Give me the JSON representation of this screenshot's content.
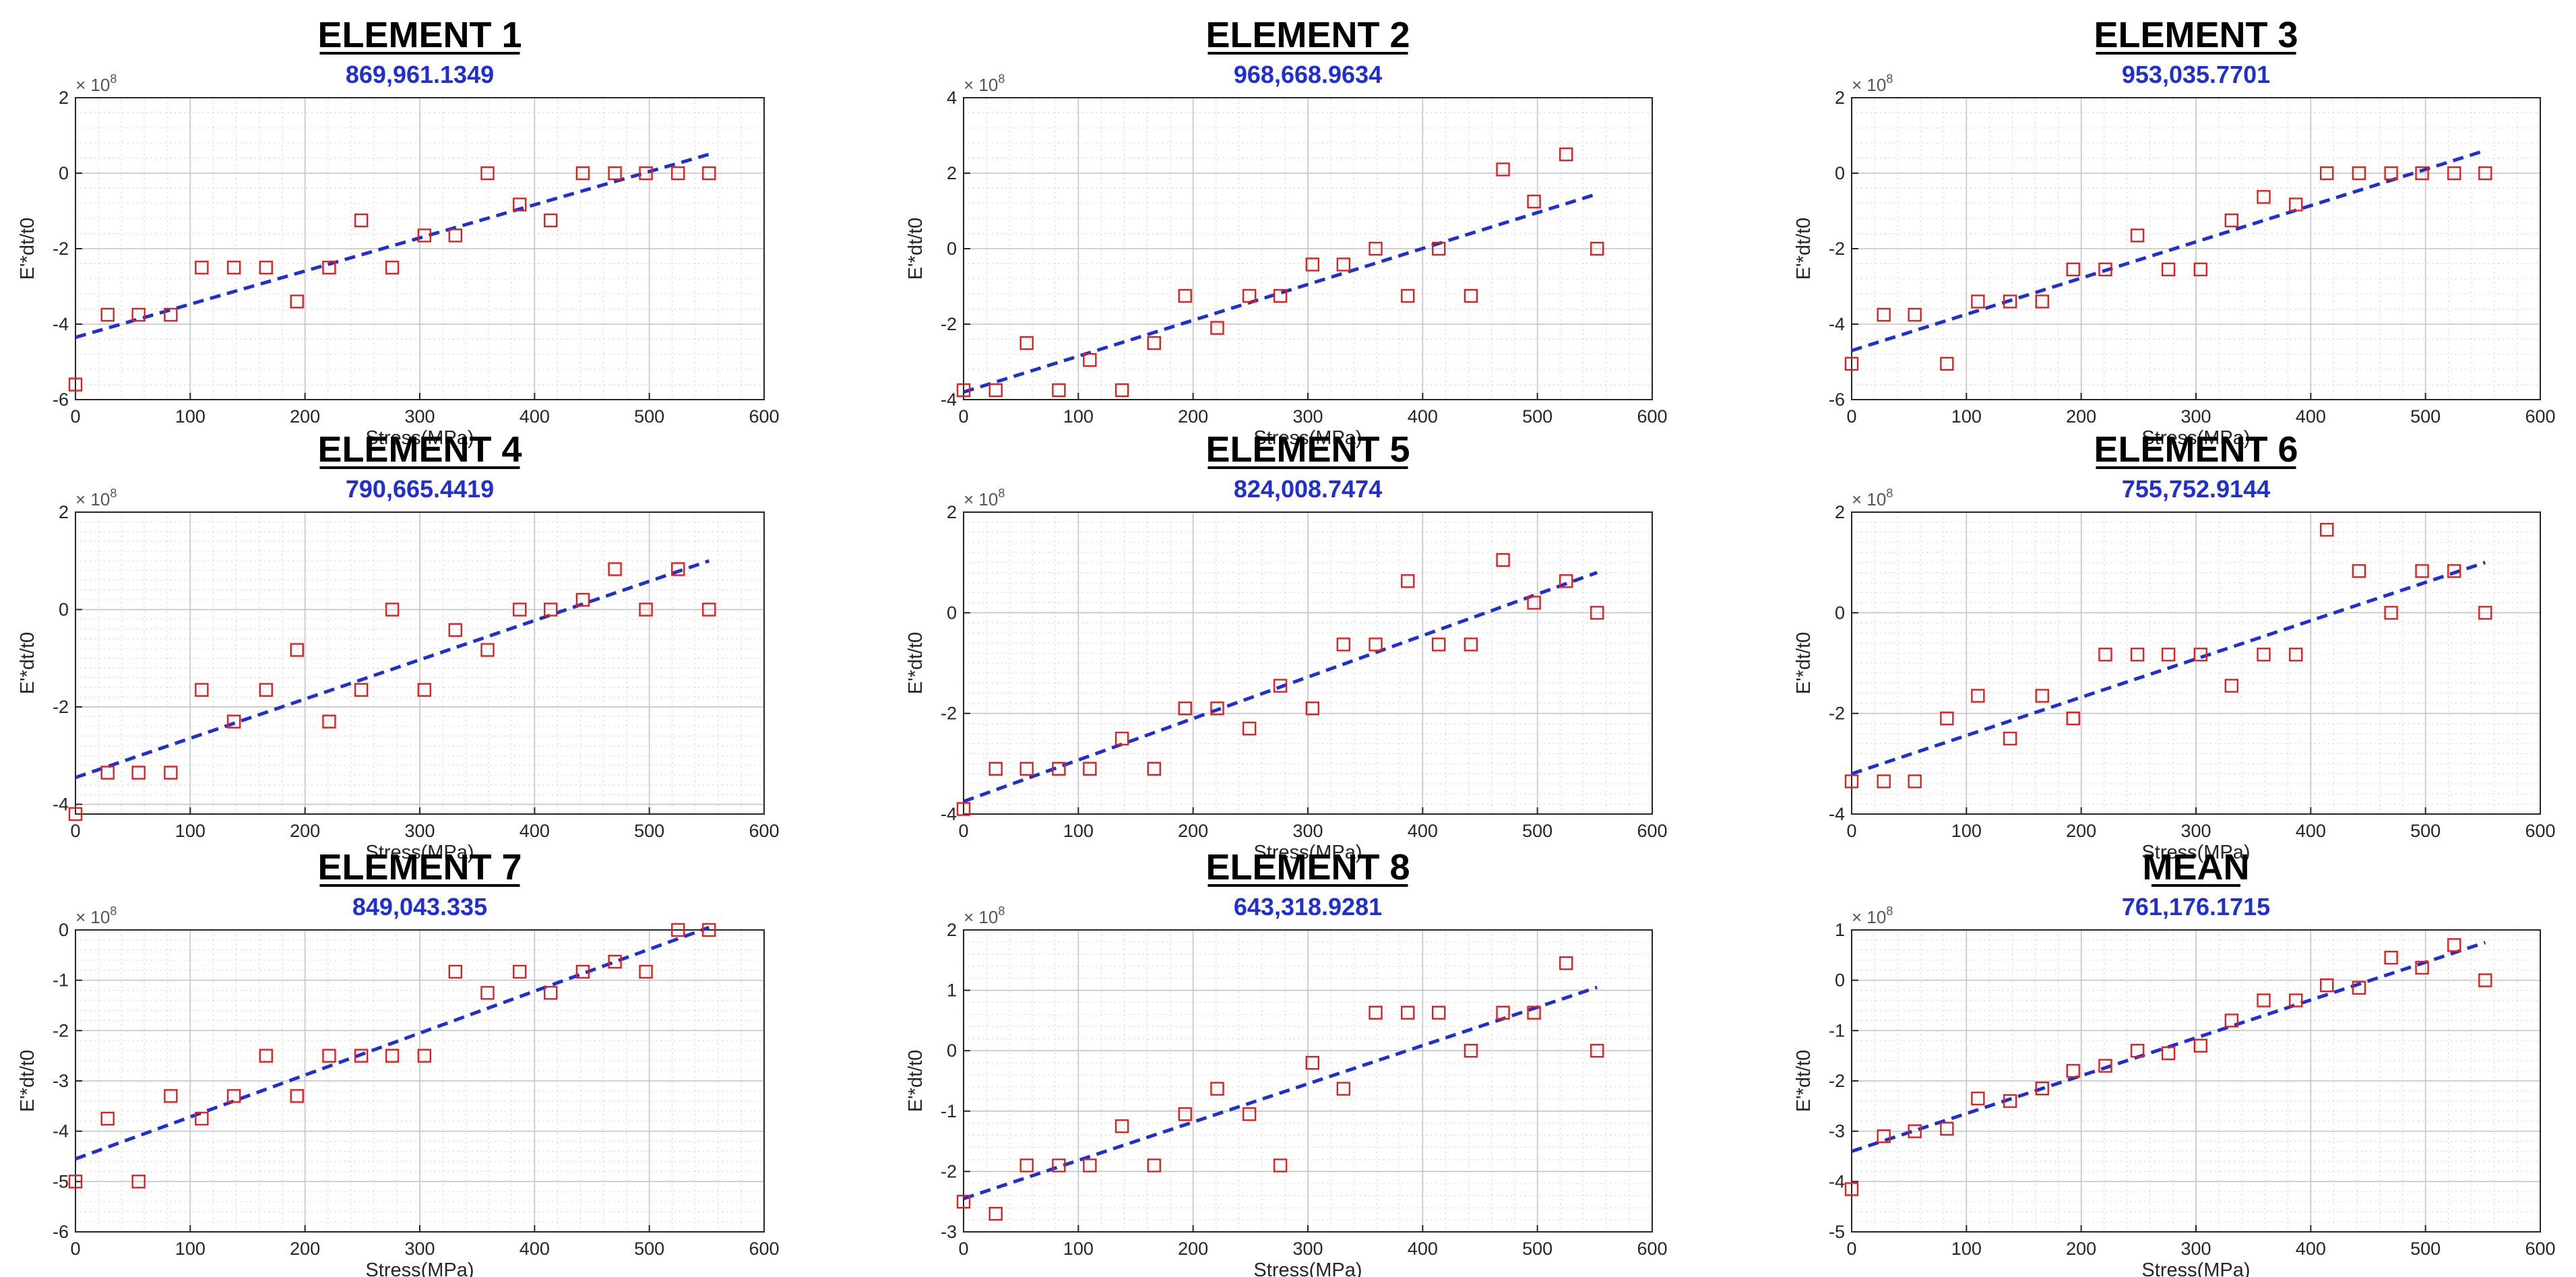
{
  "chart_data": [
    {
      "type": "scatter",
      "title": "ELEMENT 1",
      "subtitle": "869,961.1349",
      "xlabel": "Stress(MPa)",
      "ylabel": "E'*dt/t0",
      "y_scale_label": "× 10^8",
      "xlim": [
        0,
        600
      ],
      "ylim": [
        -6,
        2
      ],
      "yticks": [
        -6,
        -4,
        -2,
        0,
        2
      ],
      "xticks": [
        0,
        100,
        200,
        300,
        400,
        500,
        600
      ],
      "grid": true,
      "x": [
        0,
        28,
        55,
        83,
        110,
        138,
        166,
        193,
        221,
        249,
        276,
        304,
        331,
        359,
        387,
        414,
        442,
        470,
        497,
        525,
        552
      ],
      "y": [
        -5.6,
        -3.75,
        -3.75,
        -3.75,
        -2.5,
        -2.5,
        -2.5,
        -3.4,
        -2.5,
        -1.25,
        -2.5,
        -1.65,
        -1.65,
        0,
        -0.83,
        -1.25,
        0,
        0,
        0,
        0,
        0
      ],
      "fit": {
        "x": [
          0,
          552
        ],
        "y": [
          -4.35,
          0.5
        ]
      }
    },
    {
      "type": "scatter",
      "title": "ELEMENT 2",
      "subtitle": "968,668.9634",
      "xlabel": "Stress(MPa)",
      "ylabel": "E'*dt/t0",
      "y_scale_label": "× 10^8",
      "xlim": [
        0,
        600
      ],
      "ylim": [
        -4,
        4
      ],
      "yticks": [
        -4,
        -2,
        0,
        2,
        4
      ],
      "xticks": [
        0,
        100,
        200,
        300,
        400,
        500,
        600
      ],
      "grid": true,
      "x": [
        0,
        28,
        55,
        83,
        110,
        138,
        166,
        193,
        221,
        249,
        276,
        304,
        331,
        359,
        387,
        414,
        442,
        470,
        497,
        525,
        552
      ],
      "y": [
        -3.75,
        -3.75,
        -2.5,
        -3.75,
        -2.95,
        -3.75,
        -2.5,
        -1.25,
        -2.1,
        -1.25,
        -1.25,
        -0.42,
        -0.42,
        0,
        -1.25,
        0,
        -1.25,
        2.1,
        1.25,
        2.5,
        0
      ],
      "fit": {
        "x": [
          0,
          552
        ],
        "y": [
          -3.8,
          1.45
        ]
      }
    },
    {
      "type": "scatter",
      "title": "ELEMENT 3",
      "subtitle": "953,035.7701",
      "xlabel": "Stress(MPa)",
      "ylabel": "E'*dt/t0",
      "y_scale_label": "× 10^8",
      "xlim": [
        0,
        600
      ],
      "ylim": [
        -6,
        2
      ],
      "yticks": [
        -6,
        -4,
        -2,
        0,
        2
      ],
      "xticks": [
        0,
        100,
        200,
        300,
        400,
        500,
        600
      ],
      "grid": true,
      "x": [
        0,
        28,
        55,
        83,
        110,
        138,
        166,
        193,
        221,
        249,
        276,
        304,
        331,
        359,
        387,
        414,
        442,
        470,
        497,
        525,
        552
      ],
      "y": [
        -5.05,
        -3.75,
        -3.75,
        -5.05,
        -3.4,
        -3.4,
        -3.4,
        -2.55,
        -2.55,
        -1.65,
        -2.55,
        -2.55,
        -1.25,
        -0.63,
        -0.83,
        0,
        0,
        0,
        0,
        0,
        0
      ],
      "fit": {
        "x": [
          0,
          552
        ],
        "y": [
          -4.7,
          0.6
        ]
      }
    },
    {
      "type": "scatter",
      "title": "ELEMENT 4",
      "subtitle": "790,665.4419",
      "xlabel": "Stress(MPa)",
      "ylabel": "E'*dt/t0",
      "y_scale_label": "× 10^8",
      "xlim": [
        0,
        600
      ],
      "ylim": [
        -4.2,
        2
      ],
      "yticks": [
        -4,
        -2,
        0,
        2
      ],
      "xticks": [
        0,
        100,
        200,
        300,
        400,
        500,
        600
      ],
      "grid": true,
      "x": [
        0,
        28,
        55,
        83,
        110,
        138,
        166,
        193,
        221,
        249,
        276,
        304,
        331,
        359,
        387,
        414,
        442,
        470,
        497,
        525,
        552
      ],
      "y": [
        -4.2,
        -3.35,
        -3.35,
        -3.35,
        -1.65,
        -2.3,
        -1.65,
        -0.83,
        -2.3,
        -1.65,
        0,
        -1.65,
        -0.42,
        -0.83,
        0,
        0,
        0.2,
        0.83,
        0,
        0.83,
        0
      ],
      "fit": {
        "x": [
          0,
          552
        ],
        "y": [
          -3.45,
          1.0
        ]
      }
    },
    {
      "type": "scatter",
      "title": "ELEMENT 5",
      "subtitle": "824,008.7474",
      "xlabel": "Stress(MPa)",
      "ylabel": "E'*dt/t0",
      "y_scale_label": "× 10^8",
      "xlim": [
        0,
        600
      ],
      "ylim": [
        -4,
        2
      ],
      "yticks": [
        -4,
        -2,
        0,
        2
      ],
      "xticks": [
        0,
        100,
        200,
        300,
        400,
        500,
        600
      ],
      "grid": true,
      "x": [
        0,
        28,
        55,
        83,
        110,
        138,
        166,
        193,
        221,
        249,
        276,
        304,
        331,
        359,
        387,
        414,
        442,
        470,
        497,
        525,
        552
      ],
      "y": [
        -3.9,
        -3.1,
        -3.1,
        -3.1,
        -3.1,
        -2.5,
        -3.1,
        -1.9,
        -1.9,
        -2.3,
        -1.45,
        -1.9,
        -0.63,
        -0.63,
        0.63,
        -0.63,
        -0.63,
        1.05,
        0.2,
        0.63,
        0
      ],
      "fit": {
        "x": [
          0,
          552
        ],
        "y": [
          -3.75,
          0.8
        ]
      }
    },
    {
      "type": "scatter",
      "title": "ELEMENT 6",
      "subtitle": "755,752.9144",
      "xlabel": "Stress(MPa)",
      "ylabel": "E'*dt/t0",
      "y_scale_label": "× 10^8",
      "xlim": [
        0,
        600
      ],
      "ylim": [
        -4,
        2
      ],
      "yticks": [
        -4,
        -2,
        0,
        2
      ],
      "xticks": [
        0,
        100,
        200,
        300,
        400,
        500,
        600
      ],
      "grid": true,
      "x": [
        0,
        28,
        55,
        83,
        110,
        138,
        166,
        193,
        221,
        249,
        276,
        304,
        331,
        359,
        387,
        414,
        442,
        470,
        497,
        525,
        552
      ],
      "y": [
        -3.35,
        -3.35,
        -3.35,
        -2.1,
        -1.65,
        -2.5,
        -1.65,
        -2.1,
        -0.83,
        -0.83,
        -0.83,
        -0.83,
        -1.45,
        -0.83,
        -0.83,
        1.65,
        0.83,
        0,
        0.83,
        0.83,
        0
      ],
      "fit": {
        "x": [
          0,
          552
        ],
        "y": [
          -3.2,
          1.0
        ]
      }
    },
    {
      "type": "scatter",
      "title": "ELEMENT 7",
      "subtitle": "849,043.335",
      "xlabel": "Stress(MPa)",
      "ylabel": "E'*dt/t0",
      "y_scale_label": "× 10^8",
      "xlim": [
        0,
        600
      ],
      "ylim": [
        -6,
        0
      ],
      "yticks": [
        -6,
        -5,
        -4,
        -3,
        -2,
        -1,
        0
      ],
      "xticks": [
        0,
        100,
        200,
        300,
        400,
        500,
        600
      ],
      "grid": true,
      "x": [
        0,
        28,
        55,
        83,
        110,
        138,
        166,
        193,
        221,
        249,
        276,
        304,
        331,
        359,
        387,
        414,
        442,
        470,
        497,
        525,
        552
      ],
      "y": [
        -5.0,
        -3.75,
        -5.0,
        -3.3,
        -3.75,
        -3.3,
        -2.5,
        -3.3,
        -2.5,
        -2.5,
        -2.5,
        -2.5,
        -0.83,
        -1.25,
        -0.83,
        -1.25,
        -0.83,
        -0.63,
        -0.83,
        0,
        0
      ],
      "fit": {
        "x": [
          0,
          552
        ],
        "y": [
          -4.55,
          0.05
        ]
      }
    },
    {
      "type": "scatter",
      "title": "ELEMENT 8",
      "subtitle": "643,318.9281",
      "xlabel": "Stress(MPa)",
      "ylabel": "E'*dt/t0",
      "y_scale_label": "× 10^8",
      "xlim": [
        0,
        600
      ],
      "ylim": [
        -3,
        2
      ],
      "yticks": [
        -3,
        -2,
        -1,
        0,
        1,
        2
      ],
      "xticks": [
        0,
        100,
        200,
        300,
        400,
        500,
        600
      ],
      "grid": true,
      "x": [
        0,
        28,
        55,
        83,
        110,
        138,
        166,
        193,
        221,
        249,
        276,
        304,
        331,
        359,
        387,
        414,
        442,
        470,
        497,
        525,
        552
      ],
      "y": [
        -2.5,
        -2.7,
        -1.9,
        -1.9,
        -1.9,
        -1.25,
        -1.9,
        -1.05,
        -0.63,
        -1.05,
        -1.9,
        -0.2,
        -0.63,
        0.63,
        0.63,
        0.63,
        0,
        0.63,
        0.63,
        1.45,
        0
      ],
      "fit": {
        "x": [
          0,
          552
        ],
        "y": [
          -2.45,
          1.05
        ]
      }
    },
    {
      "type": "scatter",
      "title": "MEAN",
      "subtitle": "761,176.1715",
      "xlabel": "Stress(MPa)",
      "ylabel": "E'*dt/t0",
      "y_scale_label": "× 10^8",
      "xlim": [
        0,
        600
      ],
      "ylim": [
        -5,
        1
      ],
      "yticks": [
        -5,
        -4,
        -3,
        -2,
        -1,
        0,
        1
      ],
      "xticks": [
        0,
        100,
        200,
        300,
        400,
        500,
        600
      ],
      "grid": true,
      "x": [
        0,
        28,
        55,
        83,
        110,
        138,
        166,
        193,
        221,
        249,
        276,
        304,
        331,
        359,
        387,
        414,
        442,
        470,
        497,
        525,
        552
      ],
      "y": [
        -4.15,
        -3.1,
        -3.0,
        -2.95,
        -2.35,
        -2.4,
        -2.15,
        -1.8,
        -1.7,
        -1.4,
        -1.45,
        -1.3,
        -0.8,
        -0.4,
        -0.4,
        -0.1,
        -0.15,
        0.45,
        0.25,
        0.7,
        0
      ],
      "fit": {
        "x": [
          0,
          552
        ],
        "y": [
          -3.4,
          0.75
        ]
      }
    }
  ]
}
